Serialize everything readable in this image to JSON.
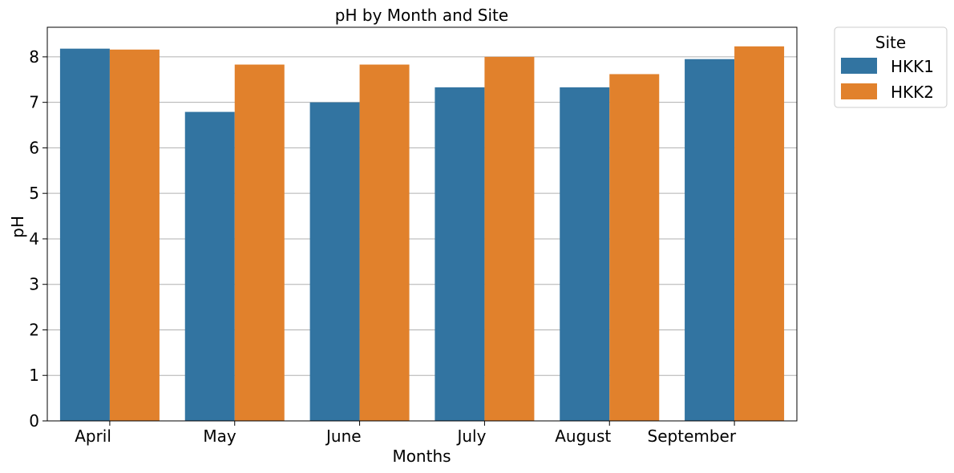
{
  "chart_data": {
    "type": "bar",
    "title": "pH by Month and Site",
    "xlabel": "Months",
    "ylabel": "pH",
    "categories": [
      "April",
      "May",
      "June",
      "July",
      "August",
      "September"
    ],
    "series": [
      {
        "name": "HKK1",
        "color": "#3274a1",
        "values": [
          8.18,
          6.79,
          7.0,
          7.33,
          7.33,
          7.95
        ]
      },
      {
        "name": "HKK2",
        "color": "#e1812c",
        "values": [
          8.16,
          7.83,
          7.83,
          8.0,
          7.62,
          8.23
        ]
      }
    ],
    "ylim": [
      0,
      8.65
    ],
    "yticks": [
      0,
      1,
      2,
      3,
      4,
      5,
      6,
      7,
      8
    ],
    "grid": "y",
    "legend": {
      "title": "Site",
      "position": "outside-top-right"
    }
  }
}
